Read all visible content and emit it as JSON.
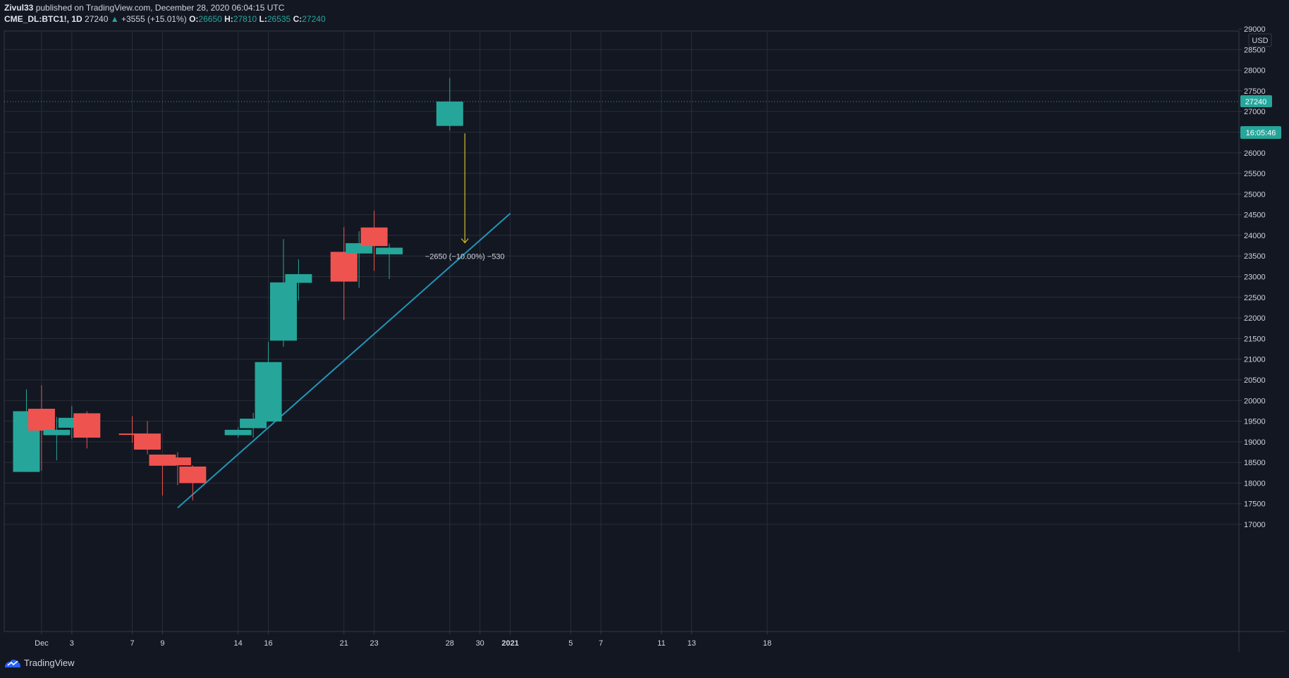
{
  "header": {
    "author": "Zivul33",
    "published": "published on TradingView.com, December 28, 2020 06:04:15 UTC",
    "symbol": "CME_DL:BTC1!",
    "interval": ", 1D",
    "last": "27240",
    "change_arrow": "▲",
    "change": "+3555 (+15.01%)",
    "o_label": "O:",
    "o_value": "26650",
    "h_label": "H:",
    "h_value": "27810",
    "l_label": "L:",
    "l_value": "26535",
    "c_label": "C:",
    "c_value": "27240"
  },
  "footer": {
    "brand": "TradingView",
    "icon": "tradingview-logo-icon"
  },
  "colors": {
    "background": "#131722",
    "grid": "#2a2e39",
    "up": "#26a69a",
    "down": "#ef5350",
    "trendline": "#2196b6",
    "measure_arrow": "#d4c02a",
    "text": "#d1d4dc"
  },
  "chart_data": {
    "type": "candlestick",
    "title": "",
    "currency": "USD",
    "ylim": [
      16500,
      29000
    ],
    "y_ticks": [
      17000,
      17500,
      18000,
      18500,
      19000,
      19500,
      20000,
      20500,
      21000,
      21500,
      22000,
      22500,
      23000,
      23500,
      24000,
      24500,
      25000,
      25500,
      26000,
      26500,
      27000,
      27500,
      28000,
      28500,
      29000
    ],
    "x_ticks": [
      {
        "date": "2020-12-01",
        "label": "Dec"
      },
      {
        "date": "2020-12-03",
        "label": "3"
      },
      {
        "date": "2020-12-07",
        "label": "7"
      },
      {
        "date": "2020-12-09",
        "label": "9"
      },
      {
        "date": "2020-12-14",
        "label": "14"
      },
      {
        "date": "2020-12-16",
        "label": "16"
      },
      {
        "date": "2020-12-21",
        "label": "21"
      },
      {
        "date": "2020-12-23",
        "label": "23"
      },
      {
        "date": "2020-12-28",
        "label": "28"
      },
      {
        "date": "2020-12-30",
        "label": "30"
      },
      {
        "date": "2021-01-01",
        "label": "2021"
      },
      {
        "date": "2021-01-05",
        "label": "5"
      },
      {
        "date": "2021-01-07",
        "label": "7"
      },
      {
        "date": "2021-01-11",
        "label": "11"
      },
      {
        "date": "2021-01-13",
        "label": "13"
      },
      {
        "date": "2021-01-18",
        "label": "18"
      }
    ],
    "candles": [
      {
        "date": "2020-11-30",
        "open": 18270,
        "high": 20270,
        "low": 18270,
        "close": 19740
      },
      {
        "date": "2020-12-01",
        "open": 19800,
        "high": 20370,
        "low": 18300,
        "close": 19270
      },
      {
        "date": "2020-12-02",
        "open": 19160,
        "high": 19600,
        "low": 18550,
        "close": 19290
      },
      {
        "date": "2020-12-03",
        "open": 19340,
        "high": 19870,
        "low": 19070,
        "close": 19580
      },
      {
        "date": "2020-12-04",
        "open": 19690,
        "high": 19740,
        "low": 18840,
        "close": 19100
      },
      {
        "date": "2020-12-07",
        "open": 19200,
        "high": 19620,
        "low": 18980,
        "close": 19180
      },
      {
        "date": "2020-12-08",
        "open": 19200,
        "high": 19500,
        "low": 18700,
        "close": 18810
      },
      {
        "date": "2020-12-09",
        "open": 18690,
        "high": 18690,
        "low": 17700,
        "close": 18420
      },
      {
        "date": "2020-12-10",
        "open": 18620,
        "high": 18750,
        "low": 17950,
        "close": 18430
      },
      {
        "date": "2020-12-11",
        "open": 18400,
        "high": 18430,
        "low": 17580,
        "close": 18000
      },
      {
        "date": "2020-12-14",
        "open": 19160,
        "high": 19350,
        "low": 19100,
        "close": 19290
      },
      {
        "date": "2020-12-15",
        "open": 19330,
        "high": 19700,
        "low": 19100,
        "close": 19560
      },
      {
        "date": "2020-12-16",
        "open": 19490,
        "high": 21420,
        "low": 19490,
        "close": 20930
      },
      {
        "date": "2020-12-17",
        "open": 21450,
        "high": 23910,
        "low": 21300,
        "close": 22860
      },
      {
        "date": "2020-12-18",
        "open": 22850,
        "high": 23420,
        "low": 22420,
        "close": 23060
      },
      {
        "date": "2020-12-21",
        "open": 23600,
        "high": 24200,
        "low": 21950,
        "close": 22880
      },
      {
        "date": "2020-12-22",
        "open": 23560,
        "high": 24100,
        "low": 22730,
        "close": 23810
      },
      {
        "date": "2020-12-23",
        "open": 24190,
        "high": 24600,
        "low": 23140,
        "close": 23740
      },
      {
        "date": "2020-12-24",
        "open": 23540,
        "high": 23800,
        "low": 22940,
        "close": 23700
      },
      {
        "date": "2020-12-28",
        "open": 26650,
        "high": 27810,
        "low": 26535,
        "close": 27240
      }
    ],
    "last_price": {
      "value": 27240,
      "label": "27240",
      "countdown": "16:05:46"
    },
    "trendline": {
      "start": {
        "date": "2020-12-10",
        "price": 17400
      },
      "end": {
        "date": "2021-01-01",
        "price": 24530
      }
    },
    "measure": {
      "from": {
        "date": "2020-12-29",
        "price": 26470
      },
      "to": {
        "date": "2020-12-29",
        "price": 23820
      },
      "label": "−2650 (−10.00%) −530"
    }
  }
}
